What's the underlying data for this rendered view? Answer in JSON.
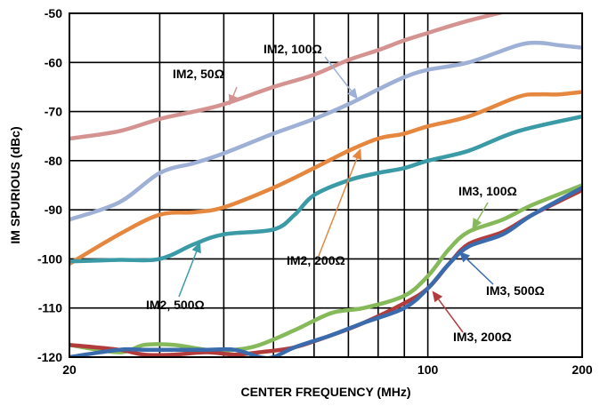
{
  "chart_data": {
    "type": "line",
    "xlabel": "CENTER FREQUENCY (MHz)",
    "ylabel": "IM SPURIOUS (dBc)",
    "x_scale": "log",
    "xlim": [
      20,
      200
    ],
    "ylim": [
      -120,
      -50
    ],
    "grid": true,
    "x_tick_labels": [
      "20",
      "100",
      "200"
    ],
    "y_tick_labels": [
      "-50",
      "-60",
      "-70",
      "-80",
      "-90",
      "-100",
      "-110",
      "-120"
    ],
    "y_ticks": [
      -50,
      -60,
      -70,
      -80,
      -90,
      -100,
      -110,
      -120
    ],
    "x_ticks_major": [
      20,
      100,
      200
    ],
    "x_grid": [
      20,
      30,
      40,
      50,
      60,
      70,
      80,
      90,
      100,
      200
    ],
    "series": [
      {
        "name": "IM2, 50Ω",
        "color": "#d49390",
        "x": [
          20,
          25,
          30,
          35,
          40,
          50,
          60,
          70,
          80,
          90,
          100,
          120,
          150
        ],
        "y": [
          -75.5,
          -74,
          -71.5,
          -70,
          -68.5,
          -65,
          -62.5,
          -59.5,
          -57.5,
          -55.5,
          -54,
          -51.5,
          -49
        ]
      },
      {
        "name": "IM2, 100Ω",
        "color": "#9fb0d6",
        "x": [
          20,
          25,
          30,
          35,
          40,
          50,
          60,
          70,
          80,
          90,
          100,
          120,
          150,
          165,
          180,
          200
        ],
        "y": [
          -92,
          -88.5,
          -82.5,
          -80.5,
          -78.5,
          -74.5,
          -71.5,
          -68.5,
          -65.5,
          -63,
          -61.5,
          -60,
          -56.5,
          -56,
          -56.5,
          -57
        ]
      },
      {
        "name": "IM2, 200Ω",
        "color": "#e5873f",
        "x": [
          20,
          25,
          30,
          35,
          40,
          50,
          60,
          70,
          80,
          90,
          100,
          120,
          150,
          165,
          180,
          200
        ],
        "y": [
          -101,
          -95,
          -91,
          -90.5,
          -89.5,
          -85.5,
          -81.5,
          -78,
          -75.5,
          -74.5,
          -73,
          -71,
          -67,
          -66.5,
          -66.5,
          -66
        ]
      },
      {
        "name": "IM2, 500Ω",
        "color": "#3a9aa6",
        "x": [
          20,
          25,
          30,
          35,
          40,
          50,
          55,
          60,
          70,
          80,
          90,
          100,
          120,
          150,
          200
        ],
        "y": [
          -100.5,
          -100.2,
          -100,
          -97,
          -95,
          -94,
          -91,
          -87,
          -84,
          -82.5,
          -81.5,
          -80,
          -78,
          -74,
          -71
        ]
      },
      {
        "name": "IM3, 100Ω",
        "color": "#86b95a",
        "x": [
          20,
          25,
          28,
          32,
          37,
          42,
          47,
          55,
          65,
          75,
          90,
          100,
          110,
          120,
          140,
          160,
          200
        ],
        "y": [
          -117.5,
          -119,
          -117.5,
          -117.5,
          -118.5,
          -118.5,
          -117.5,
          -114.5,
          -111,
          -110,
          -107.5,
          -103.5,
          -98,
          -94.5,
          -92,
          -89,
          -85
        ]
      },
      {
        "name": "IM3, 200Ω",
        "color": "#b23c3c",
        "x": [
          20,
          25,
          28,
          32,
          37,
          42,
          47,
          55,
          65,
          75,
          90,
          100,
          110,
          120,
          140,
          160,
          200
        ],
        "y": [
          -117.5,
          -118.5,
          -119.5,
          -119.5,
          -119,
          -119.5,
          -119,
          -118,
          -115.5,
          -113,
          -109,
          -106,
          -101,
          -97,
          -94.5,
          -91,
          -86
        ]
      },
      {
        "name": "IM3, 500Ω",
        "color": "#3a6cad",
        "x": [
          20,
          25,
          28,
          32,
          37,
          42,
          47,
          50,
          55,
          65,
          75,
          90,
          100,
          110,
          120,
          140,
          160,
          200
        ],
        "y": [
          -120,
          -118.5,
          -118.5,
          -118.5,
          -118.5,
          -118.5,
          -120,
          -120,
          -118,
          -115.5,
          -113,
          -110,
          -106,
          -101,
          -97.5,
          -95,
          -91,
          -85.5
        ]
      }
    ],
    "annotations": [
      {
        "text": "IM2, 50Ω",
        "series": "IM2, 50Ω",
        "arrow_to": [
          41,
          -68.8
        ]
      },
      {
        "text": "IM2, 100Ω",
        "series": "IM2, 100Ω",
        "arrow_to": [
          73,
          -67.5
        ]
      },
      {
        "text": "IM2, 200Ω",
        "series": "IM2, 200Ω",
        "arrow_to": [
          74,
          -77.5
        ]
      },
      {
        "text": "IM2, 500Ω",
        "series": "IM2, 500Ω",
        "arrow_to": [
          36,
          -96.5
        ]
      },
      {
        "text": "IM3, 100Ω",
        "series": "IM3, 100Ω",
        "arrow_to": [
          122,
          -94
        ]
      },
      {
        "text": "IM3, 500Ω",
        "series": "IM3, 500Ω",
        "arrow_to": [
          115,
          -98.5
        ]
      },
      {
        "text": "IM3, 200Ω",
        "series": "IM3, 200Ω",
        "arrow_to": [
          102,
          -106.5
        ]
      }
    ]
  }
}
